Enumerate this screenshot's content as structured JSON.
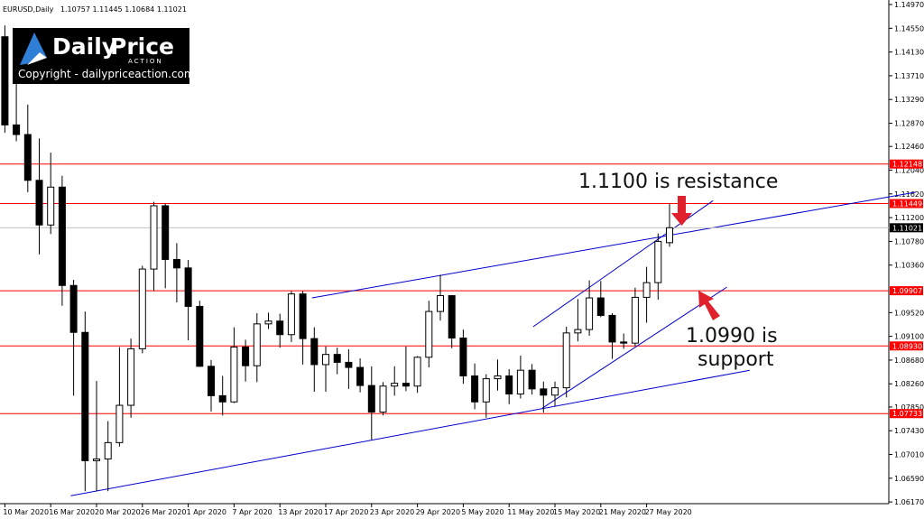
{
  "header": {
    "symbol": "EURUSD,Daily"
  },
  "logo": {
    "brand_1": "Daily",
    "brand_2": "Price",
    "brand_3": "ACTION",
    "copyright": "Copyright - dailypriceaction.com"
  },
  "annotations": [
    "1.1100 is resistance",
    "1.0990 is",
    "support"
  ],
  "chart_data": {
    "type": "candlestick",
    "categories": [
      "10 Mar 2020",
      null,
      null,
      null,
      "16 Mar 2020",
      null,
      null,
      null,
      "20 Mar 2020",
      null,
      null,
      null,
      "26 Mar 2020",
      null,
      null,
      null,
      "1 Apr 2020",
      null,
      null,
      null,
      "7 Apr 2020",
      null,
      null,
      null,
      "13 Apr 2020",
      null,
      null,
      null,
      "17 Apr 2020",
      null,
      null,
      null,
      "23 Apr 2020",
      null,
      null,
      null,
      "29 Apr 2020",
      null,
      null,
      null,
      "5 May 2020",
      null,
      null,
      null,
      "11 May 2020",
      null,
      null,
      null,
      "15 May 2020",
      null,
      null,
      null,
      "21 May 2020",
      null,
      null,
      null,
      "27 May 2020",
      null,
      null
    ],
    "ohlc": [
      [
        1.144,
        1.146,
        1.127,
        1.1284
      ],
      [
        1.1284,
        1.1358,
        1.1255,
        1.1267
      ],
      [
        1.1267,
        1.132,
        1.1165,
        1.1186
      ],
      [
        1.1186,
        1.126,
        1.1055,
        1.1107
      ],
      [
        1.1107,
        1.1235,
        1.1091,
        1.1174
      ],
      [
        1.1174,
        1.1194,
        1.0964,
        1.1
      ],
      [
        1.1,
        1.101,
        1.0805,
        1.0917
      ],
      [
        1.0917,
        1.0954,
        1.0636,
        1.069
      ],
      [
        1.069,
        1.0831,
        1.0636,
        1.0693
      ],
      [
        1.0693,
        1.076,
        1.0636,
        1.0722
      ],
      [
        1.0722,
        1.0891,
        1.0715,
        1.0788
      ],
      [
        1.0788,
        1.0906,
        1.0766,
        1.0888
      ],
      [
        1.0888,
        1.1035,
        1.088,
        1.1029
      ],
      [
        1.1029,
        1.1148,
        1.099,
        1.1141
      ],
      [
        1.1141,
        1.1145,
        1.0995,
        1.1046
      ],
      [
        1.1046,
        1.1075,
        1.097,
        1.1031
      ],
      [
        1.1031,
        1.1045,
        1.0903,
        1.0963
      ],
      [
        1.0963,
        1.0973,
        1.0856,
        1.0857
      ],
      [
        1.0857,
        1.0868,
        1.0777,
        1.0805
      ],
      [
        1.0805,
        1.084,
        1.077,
        1.0794
      ],
      [
        1.0794,
        1.0926,
        1.0792,
        1.0891
      ],
      [
        1.0891,
        1.0904,
        1.083,
        1.0858
      ],
      [
        1.0858,
        1.0951,
        1.0829,
        1.0932
      ],
      [
        1.0932,
        1.0952,
        1.0923,
        1.0937
      ],
      [
        1.0937,
        1.095,
        1.089,
        1.0913
      ],
      [
        1.0913,
        1.099,
        1.09,
        1.0985
      ],
      [
        1.0985,
        1.099,
        1.086,
        1.0906
      ],
      [
        1.0906,
        1.0926,
        1.0812,
        1.086
      ],
      [
        1.086,
        1.0892,
        1.0812,
        1.0878
      ],
      [
        1.0878,
        1.089,
        1.0843,
        1.0864
      ],
      [
        1.0864,
        1.0887,
        1.0817,
        1.0855
      ],
      [
        1.0855,
        1.0871,
        1.0811,
        1.0823
      ],
      [
        1.0823,
        1.0857,
        1.0727,
        1.0776
      ],
      [
        1.0776,
        1.0829,
        1.077,
        1.0822
      ],
      [
        1.0822,
        1.0857,
        1.0805,
        1.0827
      ],
      [
        1.0827,
        1.0892,
        1.0813,
        1.0822
      ],
      [
        1.0822,
        1.0875,
        1.081,
        1.0873
      ],
      [
        1.0873,
        1.0973,
        1.0855,
        1.0954
      ],
      [
        1.0954,
        1.1019,
        1.0938,
        1.0982
      ],
      [
        1.0982,
        1.0982,
        1.0889,
        1.0907
      ],
      [
        1.0907,
        1.0922,
        1.0826,
        1.084
      ],
      [
        1.084,
        1.0862,
        1.0781,
        1.0794
      ],
      [
        1.0794,
        1.0843,
        1.0766,
        1.0835
      ],
      [
        1.0835,
        1.0869,
        1.0814,
        1.084
      ],
      [
        1.084,
        1.0852,
        1.079,
        1.0808
      ],
      [
        1.0808,
        1.0876,
        1.08,
        1.085
      ],
      [
        1.085,
        1.0861,
        1.0807,
        1.0817
      ],
      [
        1.0817,
        1.083,
        1.0775,
        1.0806
      ],
      [
        1.0806,
        1.083,
        1.0786,
        1.0819
      ],
      [
        1.0819,
        1.0927,
        1.0802,
        1.0916
      ],
      [
        1.0916,
        1.0976,
        1.0901,
        1.0922
      ],
      [
        1.0922,
        1.1009,
        1.0911,
        1.0978
      ],
      [
        1.0978,
        1.1008,
        1.0944,
        1.0947
      ],
      [
        1.0947,
        1.0951,
        1.087,
        1.09
      ],
      [
        1.09,
        1.0915,
        1.0888,
        1.0898
      ],
      [
        1.0898,
        1.0996,
        1.0893,
        1.0979
      ],
      [
        1.0979,
        1.1033,
        1.0934,
        1.1005
      ],
      [
        1.1005,
        1.1092,
        1.0975,
        1.1078
      ],
      [
        1.10757,
        1.11445,
        1.10684,
        1.11021
      ]
    ],
    "up_color": "#ffffff",
    "down_color": "#000000",
    "ylim": [
      1.0614,
      1.1505
    ],
    "yticks": [
      {
        "value": 1.1497,
        "label": "1.14970"
      },
      {
        "value": 1.1455,
        "label": "1.14550"
      },
      {
        "value": 1.1413,
        "label": "1.14130"
      },
      {
        "value": 1.1371,
        "label": "1.13710"
      },
      {
        "value": 1.1329,
        "label": "1.13290"
      },
      {
        "value": 1.1287,
        "label": "1.12870"
      },
      {
        "value": 1.1246,
        "label": "1.12460"
      },
      {
        "value": 1.1204,
        "label": "1.12040"
      },
      {
        "value": 1.1162,
        "label": "1.11620"
      },
      {
        "value": 1.112,
        "label": "1.11200"
      },
      {
        "value": 1.1078,
        "label": "1.10780"
      },
      {
        "value": 1.1036,
        "label": "1.10360"
      },
      {
        "value": 1.0952,
        "label": "1.09520"
      },
      {
        "value": 1.091,
        "label": "1.09100"
      },
      {
        "value": 1.0868,
        "label": "1.08680"
      },
      {
        "value": 1.0826,
        "label": "1.08260"
      },
      {
        "value": 1.0785,
        "label": "1.07850"
      },
      {
        "value": 1.0743,
        "label": "1.07430"
      },
      {
        "value": 1.0701,
        "label": "1.07010"
      },
      {
        "value": 1.0659,
        "label": "1.06590"
      },
      {
        "value": 1.0617,
        "label": "1.06170"
      }
    ],
    "levels": [
      1.12148,
      1.11449,
      1.09907,
      {
        "value": 1.0893,
        "label": "1.08930"
      },
      1.07733
    ],
    "level_color": "#ff0000",
    "trendline_color": "#0000cc",
    "trendlines": [
      [
        [
          5.75,
          1.0628
        ],
        [
          65,
          1.085
        ]
      ],
      [
        [
          26.8,
          1.0978
        ],
        [
          79.5,
          1.1165
        ]
      ],
      [
        [
          46.1,
          1.0927
        ],
        [
          61.8,
          1.115
        ]
      ],
      [
        [
          46.9,
          1.0783
        ],
        [
          63,
          1.0997
        ]
      ]
    ],
    "grid": false
  }
}
